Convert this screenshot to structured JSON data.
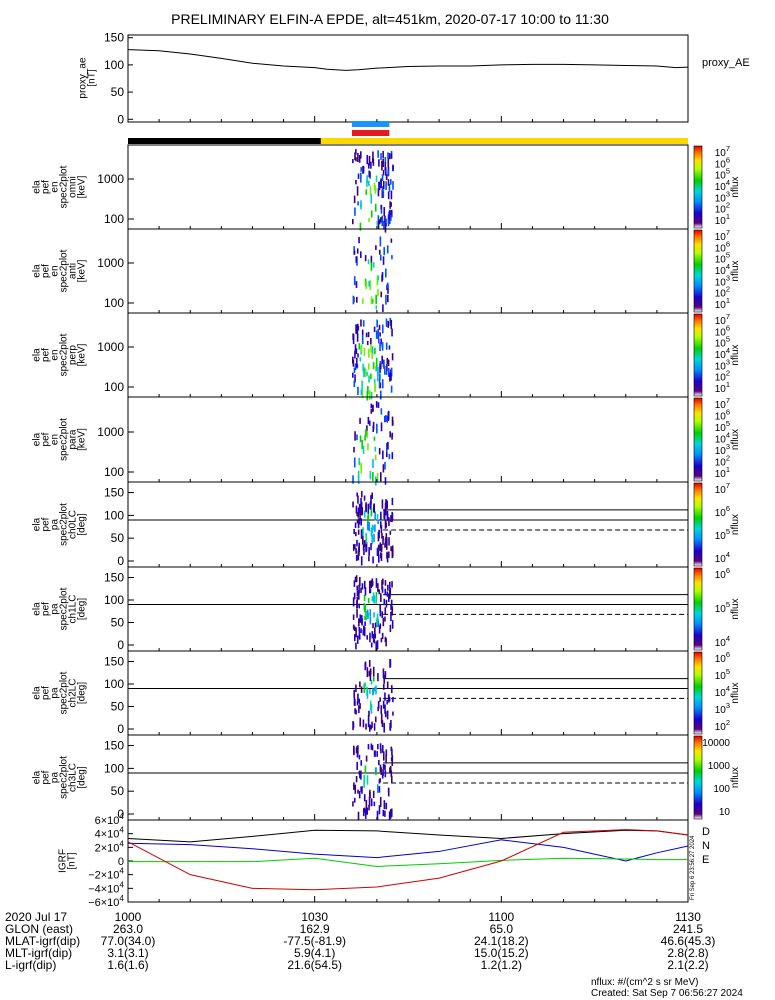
{
  "title": "PRELIMINARY ELFIN-A EPDE, alt=451km, 2020-07-17 10:00 to 11:30",
  "chart_data": [
    {
      "type": "line",
      "id": "proxy_ae",
      "ylabel": [
        "proxy_ae",
        "[nT]"
      ],
      "legend": "proxy_AE",
      "ylim": [
        -5,
        155
      ],
      "yticks": [
        "150",
        "100",
        "50",
        "0"
      ],
      "x_minutes": [
        0,
        5,
        10,
        15,
        20,
        25,
        30,
        32,
        35,
        37,
        40,
        45,
        50,
        55,
        60,
        65,
        70,
        75,
        80,
        85,
        88,
        90
      ],
      "values": [
        128,
        126,
        120,
        112,
        103,
        98,
        95,
        92,
        90,
        91,
        94,
        97,
        98,
        98,
        100,
        101,
        101,
        100,
        99,
        98,
        95,
        96
      ]
    },
    {
      "type": "bar",
      "id": "status_bars",
      "segments": [
        {
          "from_min": 0,
          "to_min": 31,
          "color": "#000000"
        },
        {
          "from_min": 31,
          "to_min": 90,
          "color": "#FFD700"
        }
      ],
      "markers": [
        {
          "from_min": 36,
          "to_min": 42,
          "color": "#1E90FF"
        },
        {
          "from_min": 36,
          "to_min": 42,
          "color": "#E41A1C"
        }
      ]
    },
    {
      "type": "heatmap",
      "id": "en_spec_omni",
      "ylabel": [
        "ela",
        "pef",
        "en",
        "spec2plot",
        "omni",
        "[keV]"
      ],
      "yticks": [
        "1000",
        "100"
      ],
      "zlabel": "nflux",
      "zticks": [
        "10^7",
        "10^6",
        "10^5",
        "10^4",
        "10^3",
        "10^2",
        "10^1"
      ]
    },
    {
      "type": "heatmap",
      "id": "en_spec_anti",
      "ylabel": [
        "ela",
        "pef",
        "en",
        "spec2plot",
        "anti",
        "[keV]"
      ],
      "yticks": [
        "1000",
        "100"
      ],
      "zlabel": "nflux",
      "zticks": [
        "10^7",
        "10^6",
        "10^5",
        "10^4",
        "10^3",
        "10^2",
        "10^1"
      ]
    },
    {
      "type": "heatmap",
      "id": "en_spec_perp",
      "ylabel": [
        "ela",
        "pef",
        "en",
        "spec2plot",
        "perp",
        "[keV]"
      ],
      "yticks": [
        "1000",
        "100"
      ],
      "zlabel": "nflux",
      "zticks": [
        "10^7",
        "10^6",
        "10^5",
        "10^4",
        "10^3",
        "10^2",
        "10^1"
      ]
    },
    {
      "type": "heatmap",
      "id": "en_spec_para",
      "ylabel": [
        "ela",
        "pef",
        "en",
        "spec2plot",
        "para",
        "[keV]"
      ],
      "yticks": [
        "1000",
        "100"
      ],
      "zlabel": "nflux",
      "zticks": [
        "10^7",
        "10^6",
        "10^5",
        "10^4",
        "10^3",
        "10^2",
        "10^1"
      ]
    },
    {
      "type": "heatmap",
      "id": "pa_spec_ch0",
      "ylabel": [
        "ela",
        "pef",
        "pa",
        "spec2plot",
        "ch0LC",
        "[deg]"
      ],
      "yticks": [
        "150",
        "100",
        "50",
        "0"
      ],
      "zlabel": "nflux",
      "zticks": [
        "10^7",
        "10^6",
        "10^5",
        "10^4"
      ]
    },
    {
      "type": "heatmap",
      "id": "pa_spec_ch1",
      "ylabel": [
        "ela",
        "pef",
        "pa",
        "spec2plot",
        "ch1LC",
        "[deg]"
      ],
      "yticks": [
        "150",
        "100",
        "50",
        "0"
      ],
      "zlabel": "nflux",
      "zticks": [
        "10^6",
        "10^5",
        "10^4"
      ]
    },
    {
      "type": "heatmap",
      "id": "pa_spec_ch2",
      "ylabel": [
        "ela",
        "pef",
        "pa",
        "spec2plot",
        "ch2LC",
        "[deg]"
      ],
      "yticks": [
        "150",
        "100",
        "50",
        "0"
      ],
      "zlabel": "nflux",
      "zticks": [
        "10^6",
        "10^5",
        "10^4",
        "10^3",
        "10^2"
      ]
    },
    {
      "type": "heatmap",
      "id": "pa_spec_ch3",
      "ylabel": [
        "ela",
        "pef",
        "pa",
        "spec2plot",
        "ch3LC",
        "[deg]"
      ],
      "yticks": [
        "150",
        "100",
        "50",
        "0"
      ],
      "zlabel": "nflux",
      "zticks": [
        "10000",
        "1000",
        "100",
        "10"
      ]
    },
    {
      "type": "line",
      "id": "igrf",
      "ylabel": [
        "IGRF",
        "[nT]"
      ],
      "ylim": [
        -60000,
        60000
      ],
      "yticks": [
        "6×10^4",
        "4×10^4",
        "2×10^4",
        "0",
        "−2×10^4",
        "−4×10^4",
        "−6×10^4"
      ],
      "x_minutes": [
        0,
        10,
        20,
        30,
        40,
        50,
        60,
        70,
        80,
        85,
        90
      ],
      "series": [
        {
          "name": "D",
          "color": "#000000",
          "values": [
            33000,
            28000,
            36000,
            45000,
            44000,
            38000,
            33000,
            40000,
            45000,
            44000,
            38000
          ]
        },
        {
          "name": "N",
          "color": "#0000CC",
          "values": [
            26000,
            24000,
            18000,
            10000,
            5000,
            14000,
            31000,
            20000,
            0,
            12000,
            22000
          ]
        },
        {
          "name": "E",
          "color": "#00CC00",
          "values": [
            -1000,
            -1000,
            -1000,
            4000,
            -8000,
            -4000,
            1000,
            4000,
            3000,
            2000,
            2000
          ]
        },
        {
          "name": "",
          "color": "#CC0000",
          "values": [
            28000,
            -20000,
            -40000,
            -42000,
            -38000,
            -25000,
            0,
            42000,
            46000,
            44000,
            38000
          ]
        }
      ],
      "side_note": "Fri Sep  6 23:56:27 2024"
    }
  ],
  "x_axis": {
    "date": "2020 Jul 17",
    "ticks": [
      "1000",
      "1030",
      "1100",
      "1130"
    ]
  },
  "ephemeris": [
    {
      "label": "GLON (east)",
      "values": [
        "263.0",
        "162.9",
        "65.0",
        "241.5"
      ]
    },
    {
      "label": "MLAT-igrf(dip)",
      "values": [
        "77.0(34.0)",
        "-77.5(-81.9)",
        "24.1(18.2)",
        "46.6(45.3)"
      ]
    },
    {
      "label": "MLT-igrf(dip)",
      "values": [
        "3.1(3.1)",
        "5.9(4.1)",
        "15.0(15.2)",
        "2.8(2.8)"
      ]
    },
    {
      "label": "L-igrf(dip)",
      "values": [
        "1.6(1.6)",
        "21.6(54.5)",
        "1.2(1.2)",
        "2.1(2.2)"
      ]
    }
  ],
  "footer": {
    "units": "nflux: #/(cm^2 s sr MeV)",
    "created": "Created: Sat Sep  7 06:56:27 2024"
  }
}
